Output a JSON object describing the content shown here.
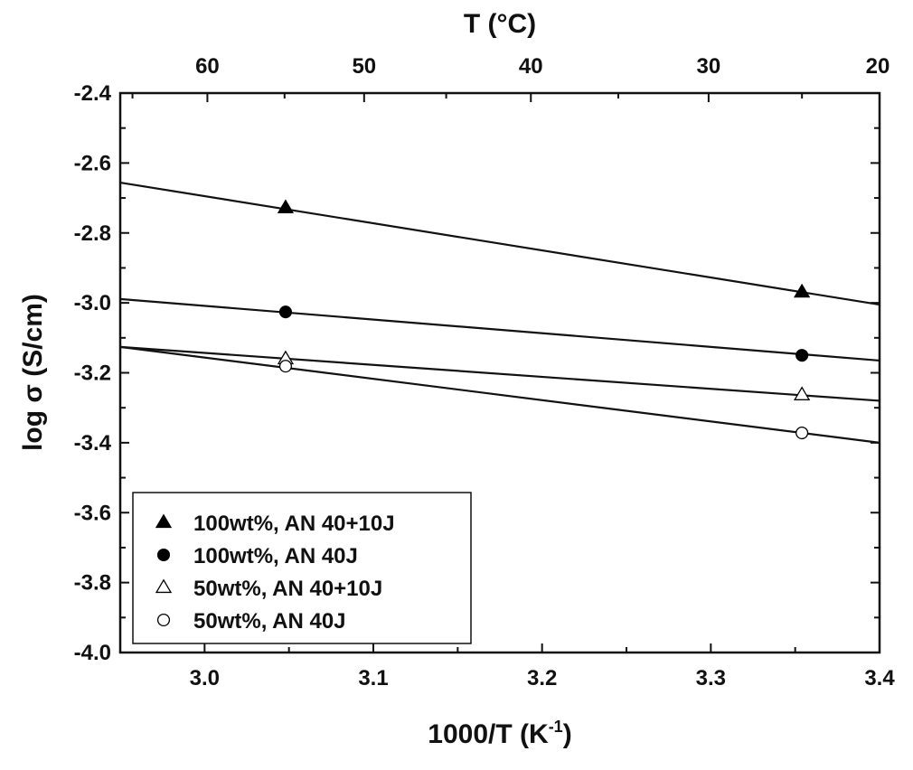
{
  "chart_data": {
    "type": "scatter",
    "xlabel": "1000/T (K",
    "xlabel_sup": "-1",
    "xlabel_end": ")",
    "ylabel": "log σ (S/cm)",
    "top_axis_label": "T (°C)",
    "xlim": [
      2.95,
      3.4
    ],
    "ylim": [
      -4.0,
      -2.4
    ],
    "x_ticks": [
      "3.0",
      "3.1",
      "3.2",
      "3.3",
      "3.4"
    ],
    "y_ticks": [
      "-2.4",
      "-2.6",
      "-2.8",
      "-3.0",
      "-3.2",
      "-3.4",
      "-3.6",
      "-3.8",
      "-4.0"
    ],
    "top_ticks": [
      "60",
      "50",
      "40",
      "30",
      "20"
    ],
    "grid": false,
    "legend_position": "bottom-left",
    "series": [
      {
        "name": "100wt%, AN 40+10J",
        "marker": "filled-triangle",
        "x": [
          3.048,
          3.354
        ],
        "y": [
          -2.728,
          -2.969
        ],
        "fit": [
          [
            2.95,
            -2.656
          ],
          [
            3.4,
            -3.005
          ]
        ]
      },
      {
        "name": "100wt%, AN 40J",
        "marker": "filled-circle",
        "x": [
          3.048,
          3.354
        ],
        "y": [
          -3.026,
          -3.15
        ],
        "fit": [
          [
            2.95,
            -2.989
          ],
          [
            3.4,
            -3.165
          ]
        ]
      },
      {
        "name": "50wt%, AN 40+10J",
        "marker": "open-triangle",
        "x": [
          3.048,
          3.354
        ],
        "y": [
          -3.16,
          -3.263
        ],
        "fit": [
          [
            2.95,
            -3.126
          ],
          [
            3.4,
            -3.28
          ]
        ]
      },
      {
        "name": "50wt%, AN 40J",
        "marker": "open-circle",
        "x": [
          3.048,
          3.354
        ],
        "y": [
          -3.181,
          -3.372
        ],
        "fit": [
          [
            2.95,
            -3.126
          ],
          [
            3.4,
            -3.4
          ]
        ]
      }
    ]
  }
}
